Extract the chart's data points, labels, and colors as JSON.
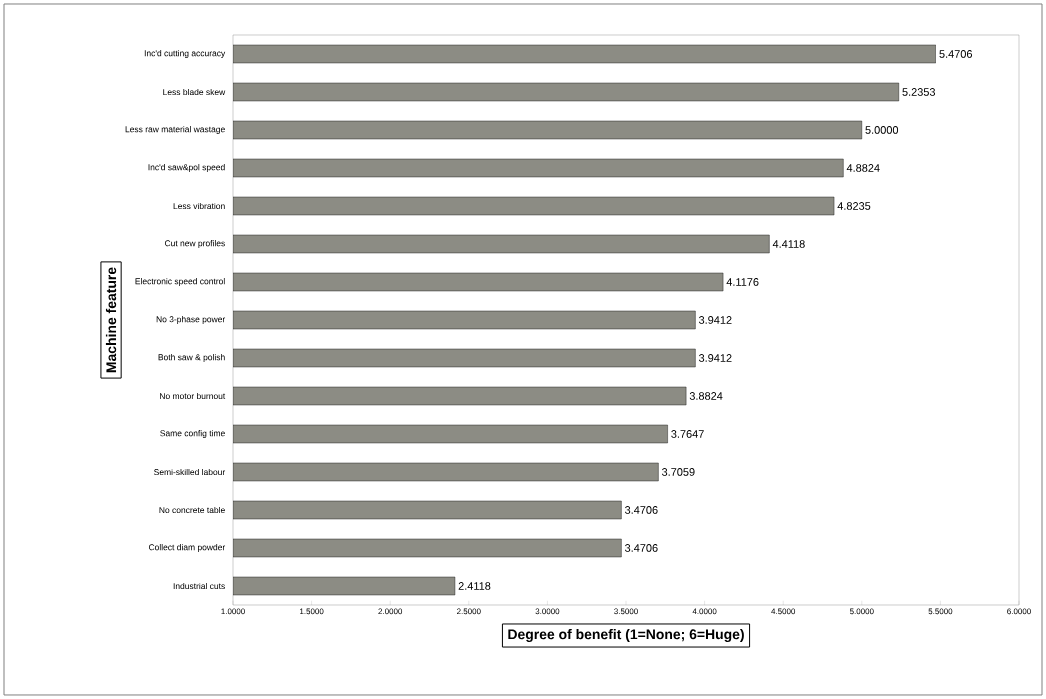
{
  "chart_data": {
    "type": "bar",
    "orientation": "horizontal",
    "xlabel": "Degree of benefit (1=None; 6=Huge)",
    "ylabel": "Machine feature",
    "categories": [
      "Inc'd cutting accuracy",
      "Less blade skew",
      "Less raw material wastage",
      "Inc'd saw&pol speed",
      "Less vibration",
      "Cut new profiles",
      "Electronic speed control",
      "No 3-phase power",
      "Both saw & polish",
      "No motor burnout",
      "Same config time",
      "Semi-skilled labour",
      "No concrete table",
      "Collect diam powder",
      "Industrial cuts"
    ],
    "values": [
      5.4706,
      5.2353,
      5.0,
      4.8824,
      4.8235,
      4.4118,
      4.1176,
      3.9412,
      3.9412,
      3.8824,
      3.7647,
      3.7059,
      3.4706,
      3.4706,
      2.4118
    ],
    "value_labels": [
      "5.4706",
      "5.2353",
      "5.0000",
      "4.8824",
      "4.8235",
      "4.4118",
      "4.1176",
      "3.9412",
      "3.9412",
      "3.8824",
      "3.7647",
      "3.7059",
      "3.4706",
      "3.4706",
      "2.4118"
    ],
    "color": "#8c8c84",
    "xlim": [
      1,
      6
    ],
    "xticks": [
      {
        "value": 1,
        "label": "1.0000"
      },
      {
        "value": 1.5,
        "label": "1.5000"
      },
      {
        "value": 2,
        "label": "2.0000"
      },
      {
        "value": 2.5,
        "label": "2.5000"
      },
      {
        "value": 3,
        "label": "3.0000"
      },
      {
        "value": 3.5,
        "label": "3.5000"
      },
      {
        "value": 4,
        "label": "4.0000"
      },
      {
        "value": 4.5,
        "label": "4.5000"
      },
      {
        "value": 5,
        "label": "5.0000"
      },
      {
        "value": 5.5,
        "label": "5.5000"
      },
      {
        "value": 6,
        "label": "6.0000"
      }
    ],
    "grid": false
  }
}
